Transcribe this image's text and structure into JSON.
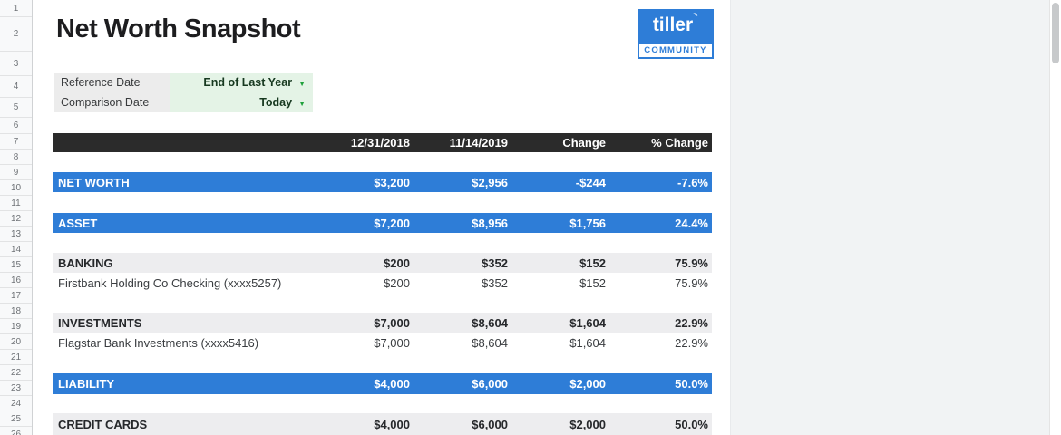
{
  "title": "Net Worth Snapshot",
  "logo": {
    "brand": "tiller",
    "accent": "`",
    "sub": "COMMUNITY"
  },
  "gutter": {
    "rows": [
      "1",
      "2",
      "3",
      "4",
      "5",
      "6",
      "7",
      "8",
      "9",
      "10",
      "11",
      "12",
      "13",
      "14",
      "15",
      "16",
      "17",
      "18",
      "19",
      "20",
      "21",
      "22",
      "23",
      "24",
      "25",
      "26"
    ]
  },
  "selectors": {
    "rows": [
      {
        "label": "Reference Date",
        "value": "End of Last Year",
        "arrow": "▼"
      },
      {
        "label": "Comparison Date",
        "value": "Today",
        "arrow": "▼"
      }
    ]
  },
  "table": {
    "columns": [
      "",
      "12/31/2018",
      "11/14/2019",
      "Change",
      "% Change"
    ],
    "rows": [
      {
        "label": "NET WORTH",
        "style": "total",
        "values": [
          "$3,200",
          "$2,956",
          "-$244",
          "-7.6%"
        ]
      },
      {
        "label": "ASSET",
        "style": "total",
        "values": [
          "$7,200",
          "$8,956",
          "$1,756",
          "24.4%"
        ]
      },
      {
        "label": "BANKING",
        "style": "section",
        "values": [
          "$200",
          "$352",
          "$152",
          "75.9%"
        ]
      },
      {
        "label": "Firstbank Holding Co Checking (xxxx5257)",
        "style": "detail",
        "values": [
          "$200",
          "$352",
          "$152",
          "75.9%"
        ]
      },
      {
        "label": "INVESTMENTS",
        "style": "section",
        "values": [
          "$7,000",
          "$8,604",
          "$1,604",
          "22.9%"
        ]
      },
      {
        "label": "Flagstar Bank Investments (xxxx5416)",
        "style": "detail",
        "values": [
          "$7,000",
          "$8,604",
          "$1,604",
          "22.9%"
        ]
      },
      {
        "label": "LIABILITY",
        "style": "total",
        "values": [
          "$4,000",
          "$6,000",
          "$2,000",
          "50.0%"
        ]
      },
      {
        "label": "CREDIT CARDS",
        "style": "section",
        "values": [
          "$4,000",
          "$6,000",
          "$2,000",
          "50.0%"
        ]
      }
    ]
  },
  "colors": {
    "accent_blue": "#2e7dd7",
    "header_dark": "#2b2b2b",
    "section_gray": "#ededef",
    "selector_gray": "#ececec",
    "selector_green_bg": "#e4f3e6",
    "green_accent": "#1fa13c",
    "outside_gray": "#f1f3f4"
  }
}
